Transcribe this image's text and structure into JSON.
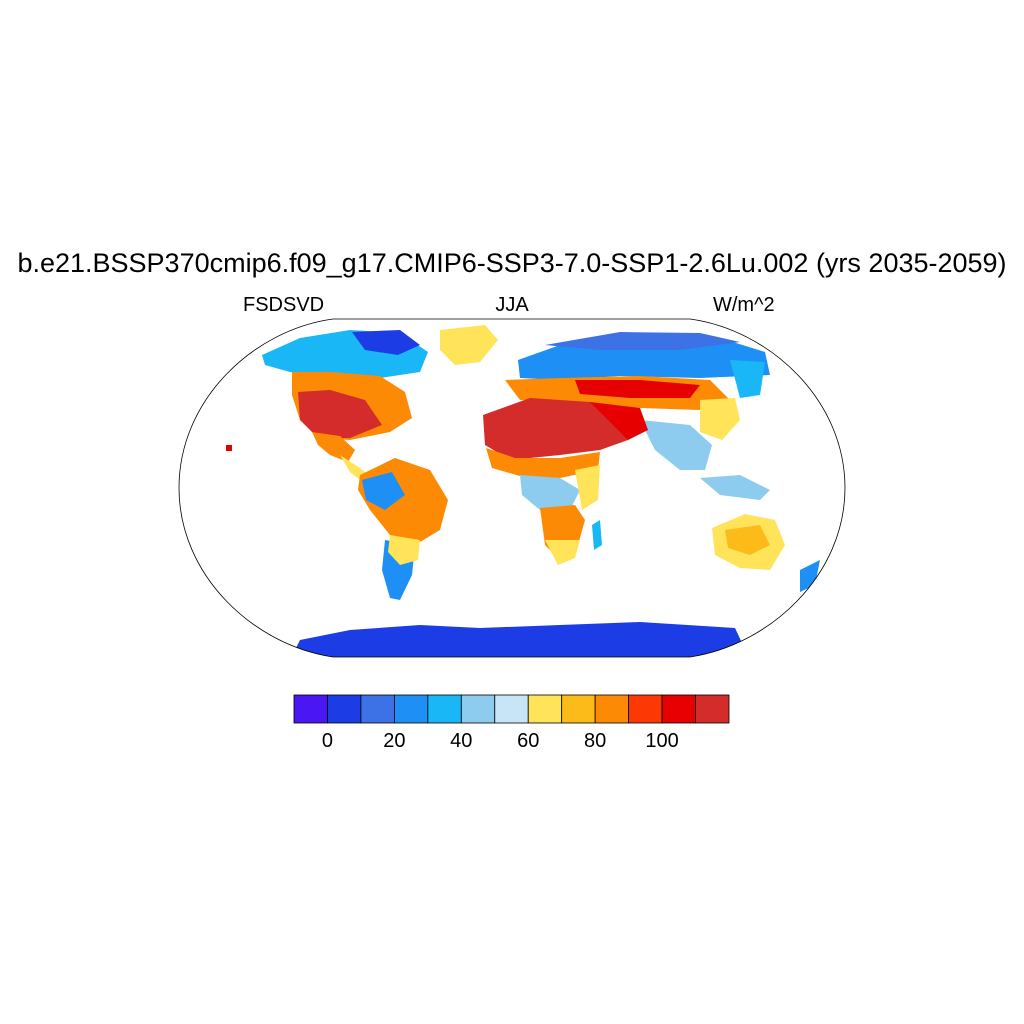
{
  "title": "b.e21.BSSP370cmip6.f09_g17.CMIP6-SSP3-7.0-SSP1-2.6Lu.002 (yrs 2035-2059)",
  "subtitle_left": "FSDSVD",
  "subtitle_center": "JJA",
  "subtitle_right": "W/m^2",
  "colorbar": {
    "colors": [
      "#4a17f2",
      "#1c3de6",
      "#3c72e6",
      "#1e8ff4",
      "#1ab7f7",
      "#8dcbef",
      "#c7e5f7",
      "#ffe45a",
      "#fdbb19",
      "#fd8a05",
      "#fc3905",
      "#e60000",
      "#d42b2b"
    ],
    "ticks": [
      "0",
      "20",
      "40",
      "60",
      "80",
      "100"
    ]
  },
  "map_data": {
    "projection": "Robinson",
    "variable": "FSDSVD",
    "season": "JJA",
    "units": "W/m^2",
    "ocean": "masked (white)",
    "regions": [
      {
        "region": "Sahara / Arabia",
        "level": 110
      },
      {
        "region": "Western United States",
        "level": 110
      },
      {
        "region": "Mediterranean",
        "level": 100
      },
      {
        "region": "Central Asia",
        "level": 95
      },
      {
        "region": "Brazil highlands",
        "level": 90
      },
      {
        "region": "Southern Africa",
        "level": 75
      },
      {
        "region": "Australia",
        "level": 68
      },
      {
        "region": "Siberia",
        "level": 40
      },
      {
        "region": "Amazon",
        "level": 35
      },
      {
        "region": "Equatorial Africa",
        "level": 40
      },
      {
        "region": "Greenland",
        "level": 65
      },
      {
        "region": "Antarctica",
        "level": 5
      }
    ]
  }
}
